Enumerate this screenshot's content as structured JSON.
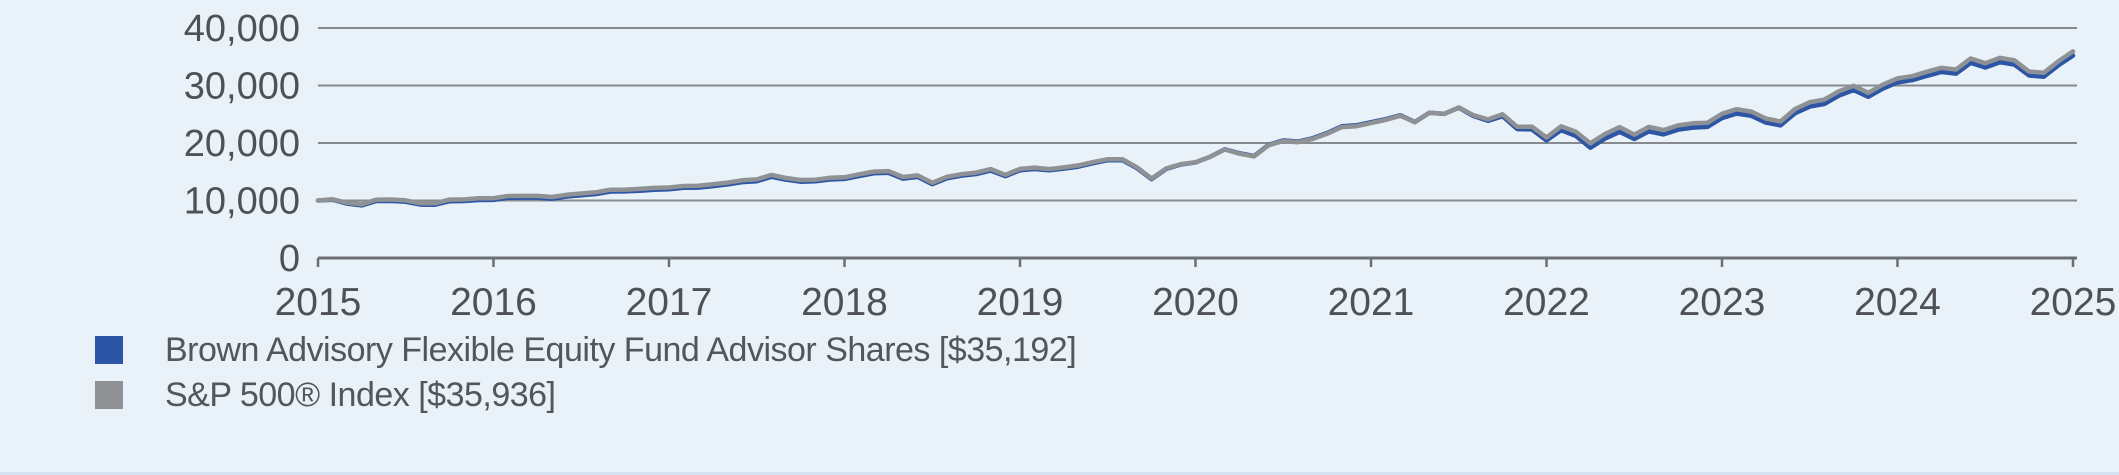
{
  "background_color": "#e9f1f9",
  "colors": {
    "fund_line": "#2d55a5",
    "index_line": "#8f9295",
    "gridline": "#878b8f",
    "axis_line": "#6b6f73",
    "axis_text": "#4e5256",
    "legend_text": "#53565a"
  },
  "legend": {
    "items": [
      {
        "label": "Brown Advisory Flexible Equity Fund Advisor Shares [$35,192]",
        "color": "#2d55a5"
      },
      {
        "label": "S&P 500® Index [$35,936]",
        "color": "#8f9295"
      }
    ]
  },
  "chart_data": {
    "type": "line",
    "title": "",
    "xlabel": "",
    "ylabel": "",
    "ylim": [
      0,
      40000
    ],
    "grid": "horizontal",
    "legend_position": "bottom-left",
    "y_ticks": {
      "values": [
        40000,
        30000,
        20000,
        10000,
        0
      ],
      "labels": [
        "40,000",
        "30,000",
        "20,000",
        "10,000",
        "0"
      ]
    },
    "x_ticks": {
      "labels": [
        "2015",
        "2016",
        "2017",
        "2018",
        "2019",
        "2020",
        "2021",
        "2022",
        "2023",
        "2024",
        "2025"
      ],
      "month_positions": [
        0,
        12,
        24,
        36,
        48,
        60,
        72,
        84,
        96,
        108,
        120
      ]
    },
    "points_per_series": 121,
    "series": [
      {
        "name": "Brown Advisory Flexible Equity Fund Advisor Shares",
        "final_value_label": "[$35,192]",
        "final_value": 35192,
        "color": "#2d55a5",
        "values": [
          10000,
          10132,
          9447,
          9142,
          9908,
          9932,
          9769,
          9280,
          9263,
          9886,
          9919,
          10091,
          10112,
          10487,
          10503,
          10507,
          10317,
          10701,
          10915,
          11124,
          11568,
          11584,
          11705,
          11872,
          11948,
          12201,
          12245,
          12503,
          12801,
          13201,
          13355,
          14127,
          13613,
          13273,
          13331,
          13659,
          13750,
          14267,
          14738,
          14826,
          13817,
          14104,
          12835,
          13868,
          14317,
          14601,
          15196,
          14237,
          15245,
          15479,
          15248,
          15547,
          15899,
          16490,
          17004,
          17012,
          15626,
          13708,
          15497,
          16268,
          16625,
          17597,
          18901,
          18219,
          17739,
          19689,
          20452,
          20251,
          20817,
          21737,
          22905,
          23073,
          23618,
          24144,
          24841,
          23651,
          25271,
          25059,
          26143,
          24696,
          23865,
          24655,
          22418,
          22370,
          20444,
          22229,
          21227,
          19186,
          20759,
          21939,
          20695,
          22015,
          21498,
          22307,
          22676,
          22793,
          24323,
          25112,
          24722,
          23551,
          23063,
          25178,
          26330,
          26799,
          28260,
          29199,
          28038,
          29458,
          30547,
          30920,
          31671,
          32348,
          32054,
          33936,
          33128,
          34057,
          33621,
          31736,
          31526,
          33517,
          35192
        ]
      },
      {
        "name": "S&P 500® Index",
        "final_value_label": "[$35,936]",
        "final_value": 35936,
        "color": "#8f9295",
        "values": [
          10000,
          10210,
          9594,
          9357,
          10147,
          10177,
          10016,
          9520,
          9508,
          10153,
          10193,
          10376,
          10403,
          10787,
          10802,
          10804,
          10607,
          11000,
          11218,
          11431,
          11885,
          11899,
          12022,
          12191,
          12267,
          12520,
          12559,
          12817,
          13116,
          13519,
          13669,
          14452,
          13919,
          13565,
          13617,
          13945,
          14031,
          14553,
          15028,
          15113,
          14080,
          14367,
          13070,
          14117,
          14570,
          14853,
          15454,
          14473,
          15493,
          15716,
          15468,
          15757,
          16099,
          16683,
          17187,
          17180,
          15766,
          13819,
          15591,
          16333,
          16658,
          17597,
          18863,
          18146,
          17663,
          19597,
          20350,
          20144,
          20700,
          21607,
          22761,
          22920,
          23454,
          24012,
          24742,
          23592,
          25246,
          25072,
          26195,
          24841,
          24098,
          24992,
          22813,
          22854,
          20968,
          22901,
          21967,
          19944,
          21559,
          22764,
          21453,
          22800,
          22244,
          23060,
          23420,
          23520,
          25075,
          25880,
          25469,
          24254,
          23744,
          25912,
          27088,
          27543,
          29014,
          29948,
          28727,
          30151,
          31234,
          31615,
          32383,
          33076,
          32775,
          34699,
          33873,
          34815,
          34362,
          32428,
          32207,
          34233,
          35936
        ]
      }
    ]
  }
}
